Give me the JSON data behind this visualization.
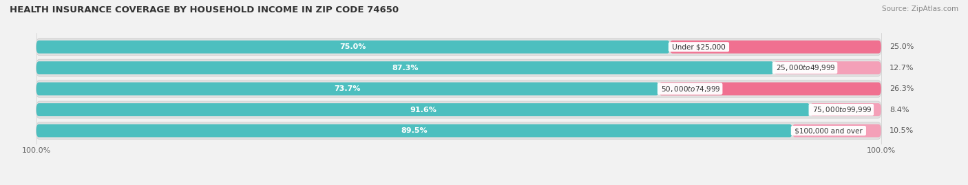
{
  "title": "HEALTH INSURANCE COVERAGE BY HOUSEHOLD INCOME IN ZIP CODE 74650",
  "source": "Source: ZipAtlas.com",
  "categories": [
    "Under $25,000",
    "$25,000 to $49,999",
    "$50,000 to $74,999",
    "$75,000 to $99,999",
    "$100,000 and over"
  ],
  "with_coverage": [
    75.0,
    87.3,
    73.7,
    91.6,
    89.5
  ],
  "without_coverage": [
    25.0,
    12.7,
    26.3,
    8.4,
    10.5
  ],
  "color_with": "#4dbfbf",
  "color_without": "#f07090",
  "color_without_light": "#f4a0b8",
  "row_bg": "#e8e8e8",
  "fig_bg": "#f2f2f2",
  "figsize": [
    14.06,
    2.69
  ],
  "dpi": 100
}
